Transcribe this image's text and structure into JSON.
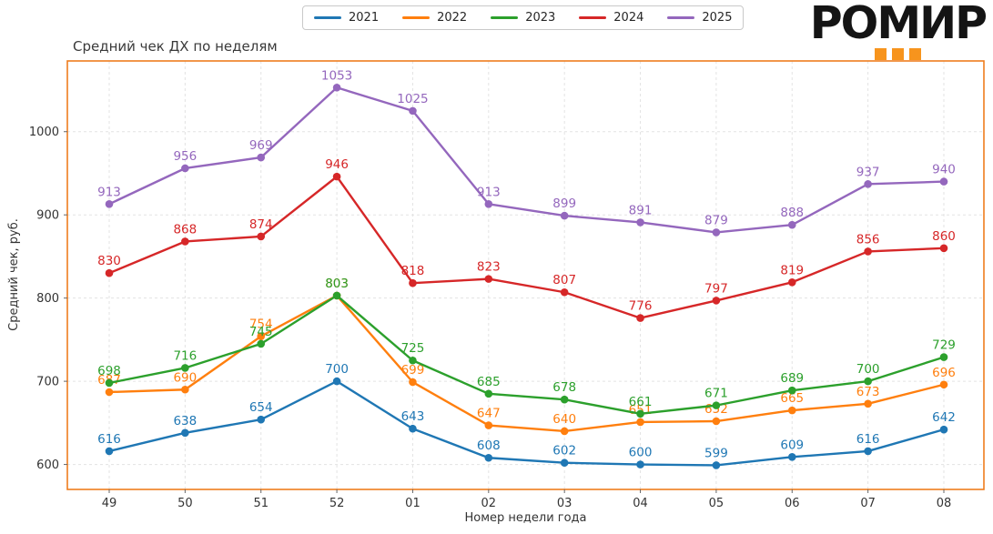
{
  "logo": {
    "text": "РОМИР",
    "squares_color": "#f7941d"
  },
  "chart_data": {
    "type": "line",
    "title": "Средний чек ДХ по неделям",
    "xlabel": "Номер недели года",
    "ylabel": "Средний чек, руб.",
    "categories": [
      "49",
      "50",
      "51",
      "52",
      "01",
      "02",
      "03",
      "04",
      "05",
      "06",
      "07",
      "08"
    ],
    "yticks": [
      600,
      700,
      800,
      900,
      1000
    ],
    "ylim": [
      570,
      1085
    ],
    "grid": true,
    "legend_position": "top-center",
    "frame_color": "#ee7d1e",
    "grid_color": "#e3e3e3",
    "tick_label_color": "#333333",
    "series": [
      {
        "name": "2021",
        "color": "#1f77b4",
        "values": [
          616,
          638,
          654,
          700,
          643,
          608,
          602,
          600,
          599,
          609,
          616,
          642
        ]
      },
      {
        "name": "2022",
        "color": "#ff7f0e",
        "values": [
          687,
          690,
          754,
          803,
          699,
          647,
          640,
          651,
          652,
          665,
          673,
          696
        ]
      },
      {
        "name": "2023",
        "color": "#2ca02c",
        "values": [
          698,
          716,
          745,
          803,
          725,
          685,
          678,
          661,
          671,
          689,
          700,
          729
        ]
      },
      {
        "name": "2024",
        "color": "#d62728",
        "values": [
          830,
          868,
          874,
          946,
          818,
          823,
          807,
          776,
          797,
          819,
          856,
          860
        ]
      },
      {
        "name": "2025",
        "color": "#9467bd",
        "values": [
          913,
          956,
          969,
          1053,
          1025,
          913,
          899,
          891,
          879,
          888,
          937,
          940
        ]
      }
    ]
  }
}
